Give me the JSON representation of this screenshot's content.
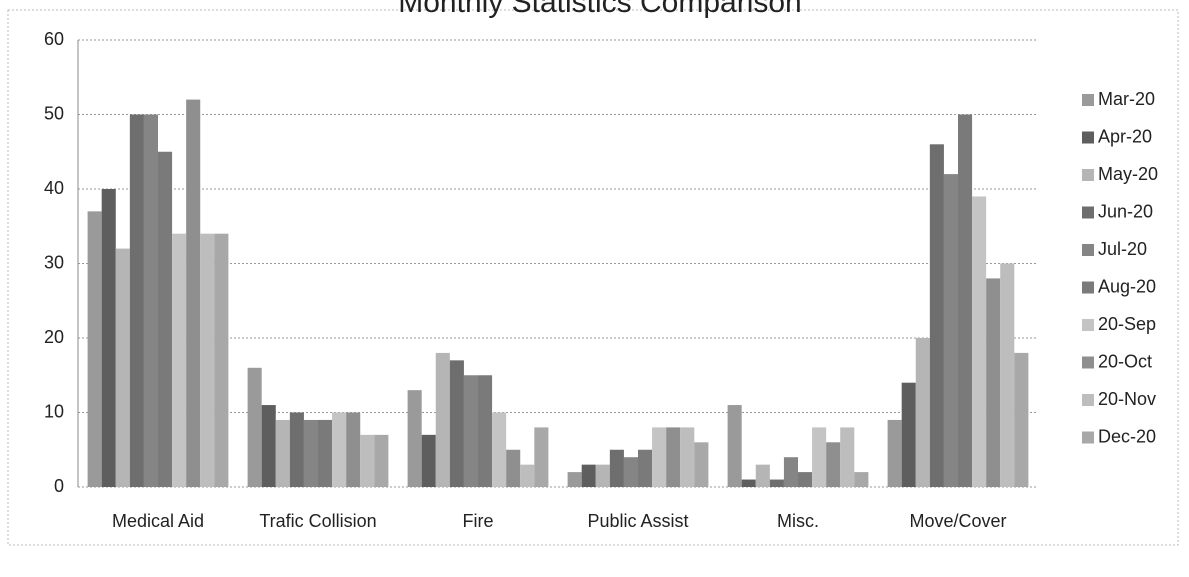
{
  "chart_data": {
    "type": "bar",
    "title": "Monthly Statistics Comparison",
    "categories": [
      "Medical Aid",
      "Trafic Collision",
      "Fire",
      "Public Assist",
      "Misc.",
      "Move/Cover"
    ],
    "series": [
      {
        "name": "Mar-20",
        "color": "#9a9a9a",
        "values": [
          37,
          16,
          13,
          2,
          11,
          9
        ]
      },
      {
        "name": "Apr-20",
        "color": "#5e5e5e",
        "values": [
          40,
          11,
          7,
          3,
          1,
          14
        ]
      },
      {
        "name": "May-20",
        "color": "#b5b5b5",
        "values": [
          32,
          9,
          18,
          3,
          3,
          20
        ]
      },
      {
        "name": "Jun-20",
        "color": "#6e6e6e",
        "values": [
          50,
          10,
          17,
          5,
          1,
          46
        ]
      },
      {
        "name": "Jul-20",
        "color": "#858585",
        "values": [
          50,
          9,
          15,
          4,
          4,
          42
        ]
      },
      {
        "name": "Aug-20",
        "color": "#7a7a7a",
        "values": [
          45,
          9,
          15,
          5,
          2,
          50
        ]
      },
      {
        "name": "20-Sep",
        "color": "#c4c4c4",
        "values": [
          34,
          10,
          10,
          8,
          8,
          39
        ]
      },
      {
        "name": "20-Oct",
        "color": "#8f8f8f",
        "values": [
          52,
          10,
          5,
          8,
          6,
          28
        ]
      },
      {
        "name": "20-Nov",
        "color": "#bdbdbd",
        "values": [
          34,
          7,
          3,
          8,
          8,
          30
        ]
      },
      {
        "name": "Dec-20",
        "color": "#a8a8a8",
        "values": [
          34,
          7,
          8,
          6,
          2,
          18
        ]
      }
    ],
    "ylim": [
      0,
      60
    ],
    "yticks": [
      0,
      10,
      20,
      30,
      40,
      50,
      60
    ],
    "grid": true,
    "legend": "right"
  }
}
